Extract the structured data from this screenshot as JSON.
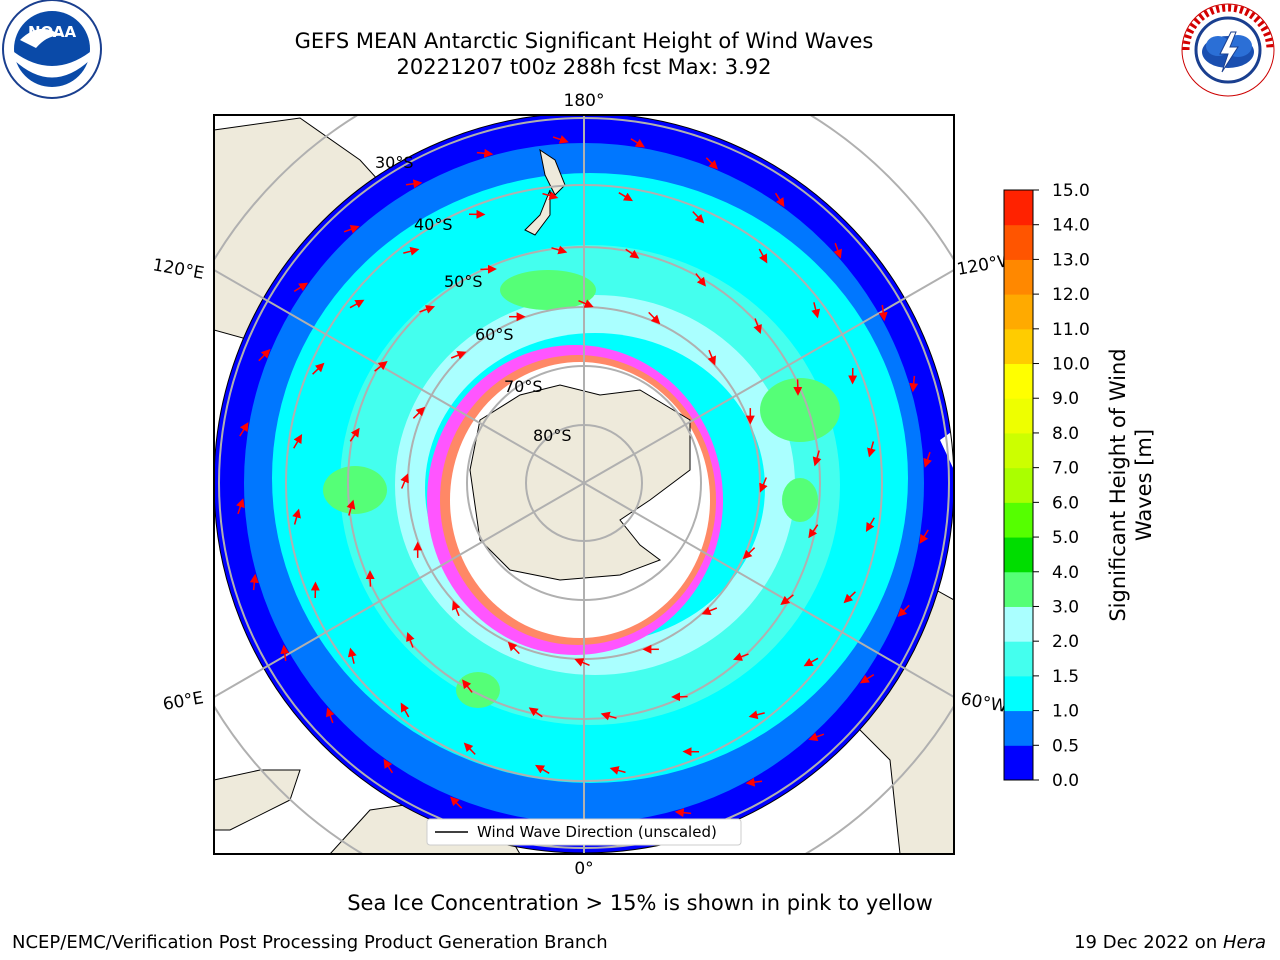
{
  "header": {
    "title_line1": "GEFS MEAN Antarctic Significant Height of Wind Waves",
    "title_line2": "20221207 t00z 288h fcst   Max: 3.92"
  },
  "logos": {
    "left": "noaa-logo",
    "left_text": "NOAA",
    "right": "national-weather-service-logo",
    "right_text": "NATIONAL WEATHER SERVICE"
  },
  "map": {
    "projection": "south-polar-stereographic",
    "longitude_labels": {
      "top": "180°",
      "bottom": "0°",
      "upper_left": "120°E",
      "upper_right": "120°W",
      "lower_left": "60°E",
      "lower_right": "60°W"
    },
    "latitude_labels": [
      "30°S",
      "40°S",
      "50°S",
      "60°S",
      "70°S",
      "80°S"
    ],
    "legend_entry": "Wind Wave Direction (unscaled)",
    "colors": {
      "land": "#eeeadb",
      "arrow": "#ff0000",
      "grid": "#b0b0b0"
    }
  },
  "colorbar": {
    "label": "Significant Height of Wind Waves [m]",
    "ticks": [
      "0.0",
      "0.5",
      "1.0",
      "1.5",
      "2.0",
      "3.0",
      "4.0",
      "5.0",
      "6.0",
      "7.0",
      "8.0",
      "9.0",
      "10.0",
      "11.0",
      "12.0",
      "13.0",
      "14.0",
      "15.0"
    ],
    "colors": [
      "#0000ff",
      "#0077ff",
      "#00ffff",
      "#44ffee",
      "#aaffff",
      "#55ff77",
      "#00dd00",
      "#55ff00",
      "#aaff00",
      "#ccff00",
      "#eeff00",
      "#ffff00",
      "#ffcc00",
      "#ffaa00",
      "#ff8800",
      "#ff5500",
      "#ff2200"
    ]
  },
  "notes": {
    "sea_ice": "Sea Ice Concentration > 15% is shown in pink to yellow"
  },
  "footer": {
    "left": "NCEP/EMC/Verification Post Processing Product Generation Branch",
    "right_prefix": "19 Dec 2022 on ",
    "right_machine": "Hera"
  }
}
